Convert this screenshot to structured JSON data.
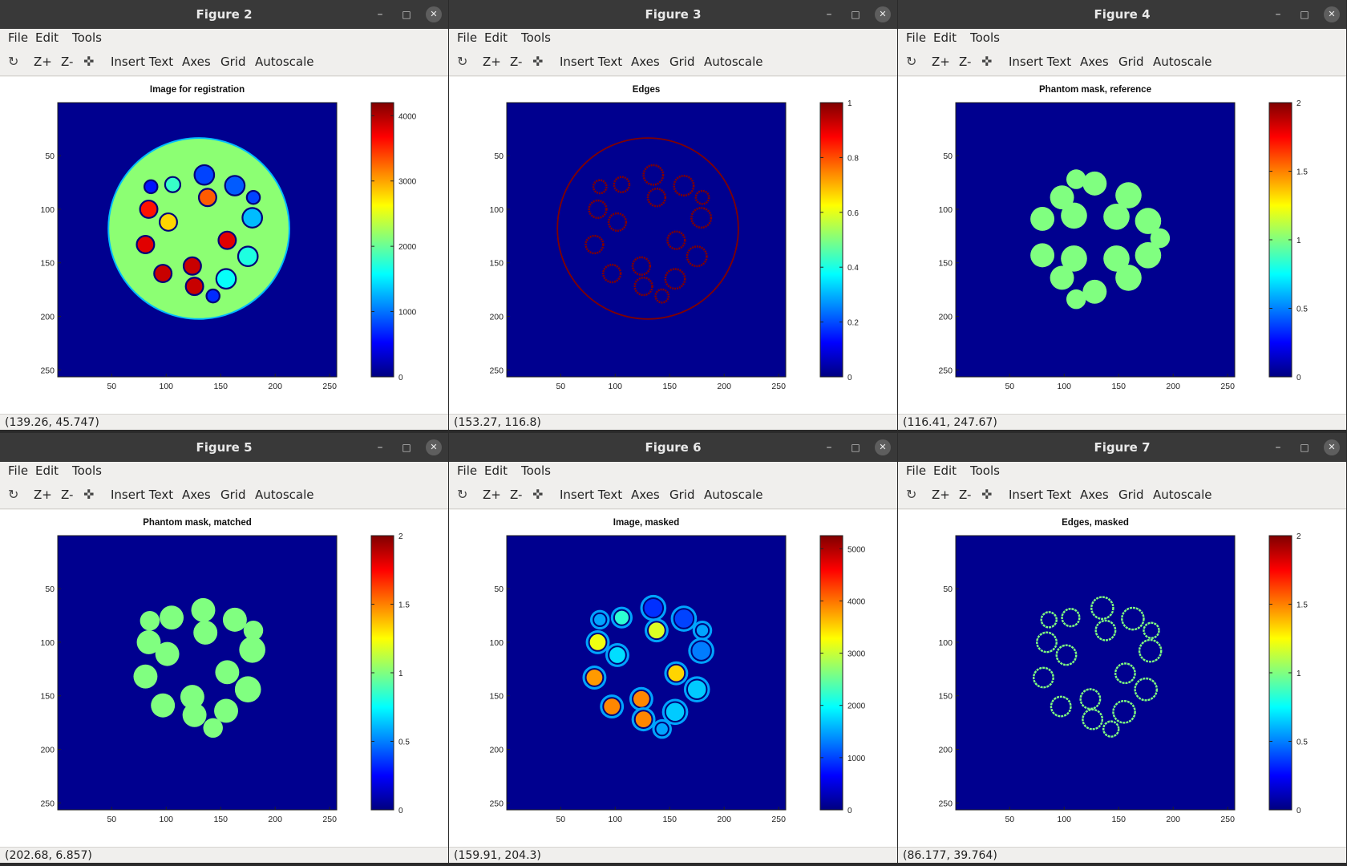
{
  "colors": {
    "background": "#00008f",
    "edge": "#800000",
    "mask": "#80ff80"
  },
  "menus": [
    "File",
    "Edit",
    "Tools"
  ],
  "toolbar": [
    "Z+",
    "Z-",
    "Insert Text",
    "Axes",
    "Grid",
    "Autoscale"
  ],
  "windows": [
    {
      "title": "Figure 2",
      "plot_title": "Image for registration",
      "status": "(139.26, 45.747)",
      "colorbar": {
        "min": 0,
        "max": 4200,
        "ticks": [
          "0",
          "1000",
          "2000",
          "3000",
          "4000"
        ],
        "tick_values": [
          0,
          1000,
          2000,
          3000,
          4000
        ]
      }
    },
    {
      "title": "Figure 3",
      "plot_title": "Edges",
      "status": "(153.27, 116.8)",
      "colorbar": {
        "min": 0,
        "max": 1,
        "ticks": [
          "0",
          "0.2",
          "0.4",
          "0.6",
          "0.8",
          "1"
        ],
        "tick_values": [
          0,
          0.2,
          0.4,
          0.6,
          0.8,
          1
        ]
      }
    },
    {
      "title": "Figure 4",
      "plot_title": "Phantom mask, reference",
      "status": "(116.41, 247.67)",
      "colorbar": {
        "min": 0,
        "max": 2,
        "ticks": [
          "0",
          "0.5",
          "1",
          "1.5",
          "2"
        ],
        "tick_values": [
          0,
          0.5,
          1,
          1.5,
          2
        ]
      }
    },
    {
      "title": "Figure 5",
      "plot_title": "Phantom mask, matched",
      "status": "(202.68, 6.857)",
      "colorbar": {
        "min": 0,
        "max": 2,
        "ticks": [
          "0",
          "0.5",
          "1",
          "1.5",
          "2"
        ],
        "tick_values": [
          0,
          0.5,
          1,
          1.5,
          2
        ]
      }
    },
    {
      "title": "Figure 6",
      "plot_title": "Image, masked",
      "status": "(159.91, 204.3)",
      "colorbar": {
        "min": 0,
        "max": 5250,
        "ticks": [
          "0",
          "1000",
          "2000",
          "3000",
          "4000",
          "5000"
        ],
        "tick_values": [
          0,
          1000,
          2000,
          3000,
          4000,
          5000
        ]
      }
    },
    {
      "title": "Figure 7",
      "plot_title": "Edges, masked",
      "status": "(86.177, 39.764)",
      "colorbar": {
        "min": 0,
        "max": 2,
        "ticks": [
          "0",
          "0.5",
          "1",
          "1.5",
          "2"
        ],
        "tick_values": [
          0,
          0.5,
          1,
          1.5,
          2
        ]
      }
    }
  ],
  "axes": {
    "x_ticks": [
      "50",
      "100",
      "150",
      "200",
      "250"
    ],
    "x_tick_values": [
      50,
      100,
      150,
      200,
      250
    ],
    "y_ticks": [
      "50",
      "100",
      "150",
      "200",
      "250"
    ],
    "y_tick_values": [
      50,
      100,
      150,
      200,
      250
    ],
    "xlim": [
      0.5,
      256.5
    ],
    "ylim": [
      0.5,
      256.5
    ]
  },
  "phantom": {
    "outer": {
      "cx": 130,
      "cy": 118,
      "r": 83
    },
    "inserts": [
      {
        "cx": 106,
        "cy": 77,
        "r": 7,
        "v1": 1800,
        "v2": 2200
      },
      {
        "cx": 135,
        "cy": 68,
        "r": 9,
        "v1": 800,
        "v2": 900
      },
      {
        "cx": 163,
        "cy": 78,
        "r": 9,
        "v1": 900,
        "v2": 1000
      },
      {
        "cx": 180,
        "cy": 89,
        "r": 6,
        "v1": 800,
        "v2": 1500
      },
      {
        "cx": 86,
        "cy": 79,
        "r": 6,
        "v1": 600,
        "v2": 1500
      },
      {
        "cx": 138,
        "cy": 89,
        "r": 8,
        "v1": 3300,
        "v2": 3100
      },
      {
        "cx": 84,
        "cy": 100,
        "r": 8,
        "v1": 3600,
        "v2": 3200
      },
      {
        "cx": 102,
        "cy": 112,
        "r": 8,
        "v1": 2800,
        "v2": 1800
      },
      {
        "cx": 179,
        "cy": 108,
        "r": 9,
        "v1": 1300,
        "v2": 1300
      },
      {
        "cx": 156,
        "cy": 129,
        "r": 8,
        "v1": 3800,
        "v2": 3500
      },
      {
        "cx": 81,
        "cy": 133,
        "r": 8,
        "v1": 3800,
        "v2": 3800
      },
      {
        "cx": 175,
        "cy": 144,
        "r": 9,
        "v1": 1700,
        "v2": 1700
      },
      {
        "cx": 97,
        "cy": 160,
        "r": 8,
        "v1": 3900,
        "v2": 3900
      },
      {
        "cx": 124,
        "cy": 153,
        "r": 8,
        "v1": 3900,
        "v2": 3900
      },
      {
        "cx": 126,
        "cy": 172,
        "r": 8,
        "v1": 3900,
        "v2": 3900
      },
      {
        "cx": 155,
        "cy": 165,
        "r": 9,
        "v1": 1600,
        "v2": 1700
      },
      {
        "cx": 143,
        "cy": 181,
        "r": 6,
        "v1": 700,
        "v2": 1500
      }
    ],
    "mask_ref": [
      {
        "cx": 111,
        "cy": 72,
        "r": 9
      },
      {
        "cx": 128,
        "cy": 76,
        "r": 11
      },
      {
        "cx": 98,
        "cy": 89,
        "r": 11
      },
      {
        "cx": 159,
        "cy": 87,
        "r": 12
      },
      {
        "cx": 80,
        "cy": 109,
        "r": 11
      },
      {
        "cx": 109,
        "cy": 106,
        "r": 12
      },
      {
        "cx": 148,
        "cy": 107,
        "r": 12
      },
      {
        "cx": 177,
        "cy": 111,
        "r": 12
      },
      {
        "cx": 188,
        "cy": 127,
        "r": 9
      },
      {
        "cx": 80,
        "cy": 143,
        "r": 11
      },
      {
        "cx": 109,
        "cy": 146,
        "r": 12
      },
      {
        "cx": 148,
        "cy": 146,
        "r": 12
      },
      {
        "cx": 177,
        "cy": 143,
        "r": 12
      },
      {
        "cx": 98,
        "cy": 164,
        "r": 11
      },
      {
        "cx": 159,
        "cy": 164,
        "r": 12
      },
      {
        "cx": 128,
        "cy": 177,
        "r": 11
      },
      {
        "cx": 111,
        "cy": 184,
        "r": 9
      }
    ],
    "mask_match": [
      {
        "cx": 85,
        "cy": 80,
        "r": 9
      },
      {
        "cx": 105,
        "cy": 77,
        "r": 11
      },
      {
        "cx": 134,
        "cy": 70,
        "r": 11
      },
      {
        "cx": 163,
        "cy": 79,
        "r": 11
      },
      {
        "cx": 180,
        "cy": 89,
        "r": 9
      },
      {
        "cx": 84,
        "cy": 100,
        "r": 11
      },
      {
        "cx": 136,
        "cy": 91,
        "r": 11
      },
      {
        "cx": 101,
        "cy": 111,
        "r": 11
      },
      {
        "cx": 179,
        "cy": 107,
        "r": 12
      },
      {
        "cx": 156,
        "cy": 128,
        "r": 11
      },
      {
        "cx": 81,
        "cy": 132,
        "r": 11
      },
      {
        "cx": 175,
        "cy": 144,
        "r": 12
      },
      {
        "cx": 124,
        "cy": 151,
        "r": 11
      },
      {
        "cx": 97,
        "cy": 159,
        "r": 11
      },
      {
        "cx": 155,
        "cy": 164,
        "r": 11
      },
      {
        "cx": 126,
        "cy": 168,
        "r": 11
      },
      {
        "cx": 143,
        "cy": 180,
        "r": 9
      }
    ]
  }
}
